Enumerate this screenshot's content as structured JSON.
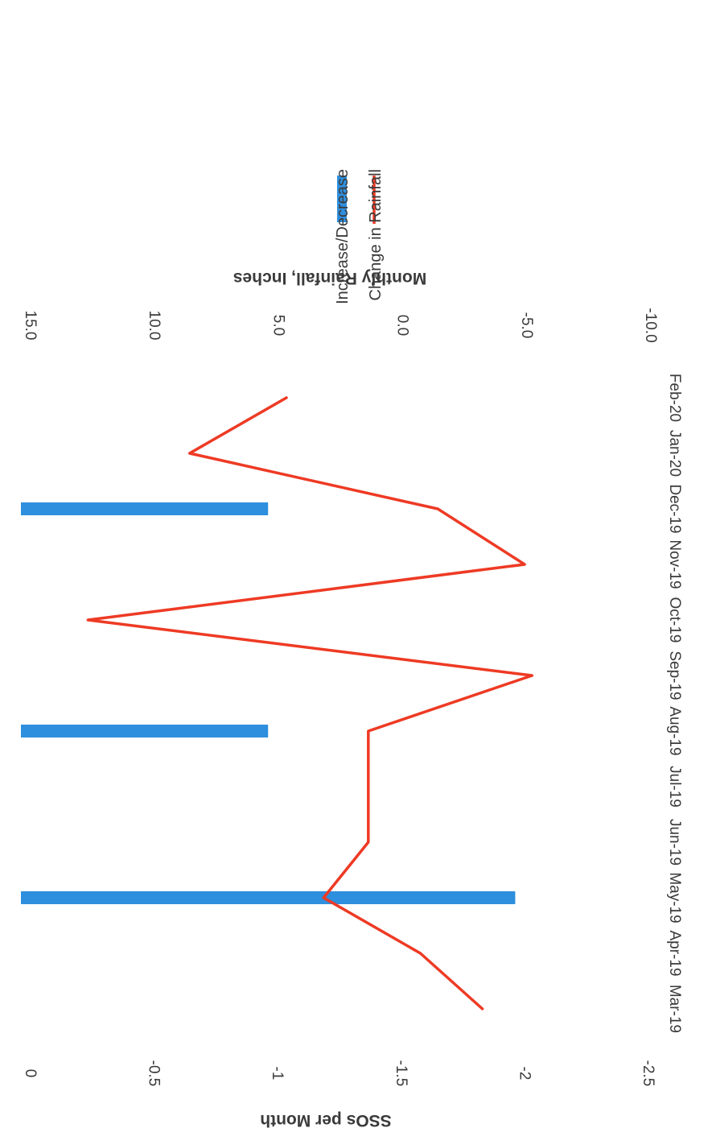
{
  "chart_data": {
    "type": "bar",
    "orientation": "rotated-90",
    "categories": [
      "Mar-19",
      "Apr-19",
      "May-19",
      "Jun-19",
      "Jul-19",
      "Aug-19",
      "Sep-19",
      "Oct-19",
      "Nov-19",
      "Dec-19",
      "Jan-20",
      "Feb-20"
    ],
    "series": [
      {
        "name": "Increase/Decrease",
        "type": "bar",
        "axis": "primary",
        "color": "#2e8fde",
        "values": [
          0,
          0,
          -2,
          0,
          0,
          -1,
          0,
          0,
          0,
          -1,
          0,
          0
        ]
      },
      {
        "name": "Change in Rainfall",
        "type": "line",
        "axis": "secondary",
        "color": "#ee3a24",
        "values": [
          -3.6,
          -1.1,
          2.8,
          1.0,
          1.0,
          1.0,
          -5.6,
          12.3,
          -5.3,
          -1.8,
          8.2,
          4.3
        ]
      }
    ],
    "primary_axis": {
      "label": "SSOs per Month",
      "range": [
        -2.5,
        0
      ],
      "ticks": [
        "0",
        "-0.5",
        "-1",
        "-1.5",
        "-2",
        "-2.5"
      ]
    },
    "secondary_axis": {
      "label": "Monthly Rainfall, Inches",
      "range": [
        -10,
        15
      ],
      "ticks": [
        "15.0",
        "10.0",
        "5.0",
        "0.0",
        "-5.0",
        "-10.0"
      ]
    },
    "legend": {
      "placement": "top",
      "entries": [
        "Increase/Decrease",
        "Change in Rainfall"
      ]
    },
    "grid": false
  }
}
